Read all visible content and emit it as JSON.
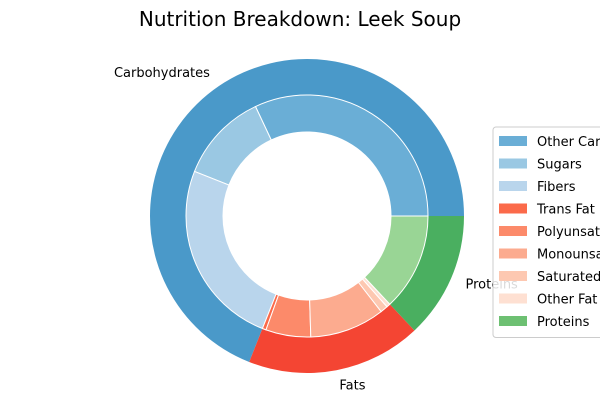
{
  "chart_data": {
    "type": "pie",
    "subtype": "nested-donut",
    "title": "Nutrition Breakdown:  Leek Soup",
    "outer_ring": {
      "categories": [
        "Carbohydrates",
        "Fats",
        "Proteins"
      ],
      "values": [
        69,
        18,
        13
      ],
      "colors": [
        "#4a99c9",
        "#f44533",
        "#4aaf60"
      ]
    },
    "inner_ring": {
      "categories": [
        "Other Carbohydrates",
        "Sugars",
        "Fibers",
        "Trans Fat",
        "Polyunsaturated Fat",
        "Monounsaturated Fat",
        "Saturated Fat",
        "Other Fat",
        "Proteins"
      ],
      "values": [
        32,
        12,
        25,
        0.5,
        6,
        10,
        1,
        0.5,
        13
      ],
      "colors": [
        "#6aaed6",
        "#9ac8e3",
        "#b9d5ec",
        "#fb6a4a",
        "#fc8a6a",
        "#fcab8f",
        "#fdc8b1",
        "#fee0d2",
        "#99d595"
      ],
      "edge_color": "#ffffff"
    },
    "start_angle_deg": 0,
    "legend": {
      "placement": "right",
      "entries": [
        {
          "label": "Other Carbohydrates",
          "color": "#6aaed6"
        },
        {
          "label": "Sugars",
          "color": "#9ac8e3"
        },
        {
          "label": "Fibers",
          "color": "#b9d5ec"
        },
        {
          "label": "Trans Fat",
          "color": "#fb6a4a"
        },
        {
          "label": "Polyunsaturated Fat",
          "color": "#fc8a6a"
        },
        {
          "label": "Monounsaturated Fat",
          "color": "#fcab8f"
        },
        {
          "label": "Saturated Fat",
          "color": "#fdc8b1"
        },
        {
          "label": "Other Fat",
          "color": "#fee0d2"
        },
        {
          "label": "Proteins",
          "color": "#6dc072"
        }
      ]
    }
  }
}
